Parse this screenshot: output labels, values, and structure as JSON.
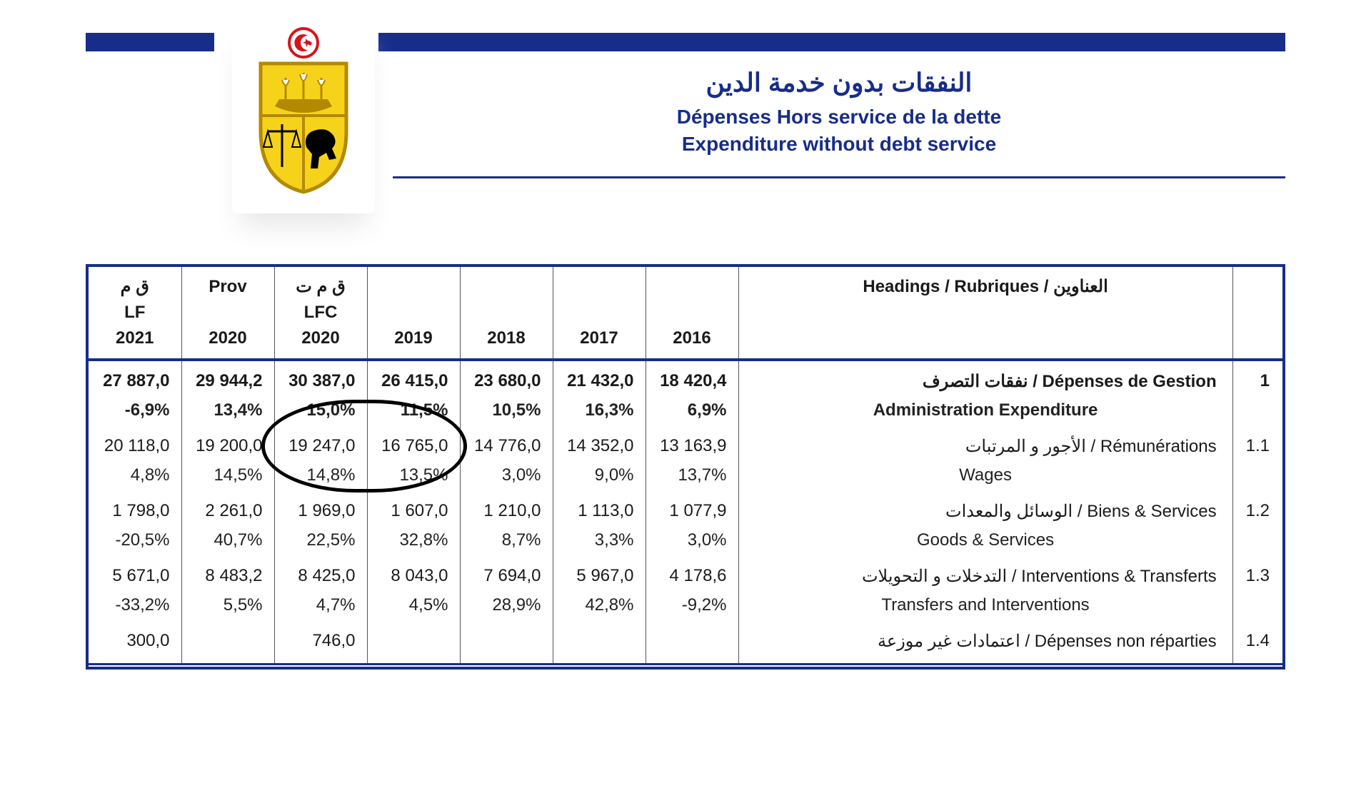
{
  "header": {
    "title_ar": "النفقات بدون خدمة الدين",
    "title_fr": "Dépenses Hors service de la dette",
    "title_en": "Expenditure without debt service",
    "emblem": {
      "shield_fill": "#f6d21a",
      "shield_stroke": "#b38900",
      "flag_red": "#d7141a"
    }
  },
  "colors": {
    "navy": "#172d8a",
    "text": "#1a1a1a",
    "background": "#ffffff"
  },
  "columns": [
    {
      "l1": "ق م",
      "l2": "LF",
      "l3": "2021"
    },
    {
      "l1": "Prov",
      "l2": "",
      "l3": "2020"
    },
    {
      "l1": "ق م ت",
      "l2": "LFC",
      "l3": "2020"
    },
    {
      "l1": "",
      "l2": "",
      "l3": "2019"
    },
    {
      "l1": "",
      "l2": "",
      "l3": "2018"
    },
    {
      "l1": "",
      "l2": "",
      "l3": "2017"
    },
    {
      "l1": "",
      "l2": "",
      "l3": "2016"
    }
  ],
  "headings_label": "Headings / Rubriques / العناوين",
  "rows": [
    {
      "idx": "1",
      "label_frar": "نفقات التصرف / Dépenses de Gestion",
      "label_en": "Administration Expenditure",
      "vals": [
        "27 887,0",
        "29 944,2",
        "30 387,0",
        "26 415,0",
        "23 680,0",
        "21 432,0",
        "18 420,4"
      ],
      "pcts": [
        "-6,9%",
        "13,4%",
        "15,0%",
        "11,5%",
        "10,5%",
        "16,3%",
        "6,9%"
      ],
      "bold": true
    },
    {
      "idx": "1.1",
      "label_frar": "الأجور و المرتبات / Rémunérations",
      "label_en": "Wages",
      "vals": [
        "20 118,0",
        "19 200,0",
        "19 247,0",
        "16 765,0",
        "14 776,0",
        "14 352,0",
        "13 163,9"
      ],
      "pcts": [
        "4,8%",
        "14,5%",
        "14,8%",
        "13,5%",
        "3,0%",
        "9,0%",
        "13,7%"
      ]
    },
    {
      "idx": "1.2",
      "label_frar": "الوسائل والمعدات /  Biens & Services",
      "label_en": "Goods & Services",
      "vals": [
        "1 798,0",
        "2 261,0",
        "1 969,0",
        "1 607,0",
        "1 210,0",
        "1 113,0",
        "1 077,9"
      ],
      "pcts": [
        "-20,5%",
        "40,7%",
        "22,5%",
        "32,8%",
        "8,7%",
        "3,3%",
        "3,0%"
      ]
    },
    {
      "idx": "1.3",
      "label_frar": "التدخلات و التحويلات / Interventions & Transferts",
      "label_en": "Transfers and Interventions",
      "vals": [
        "5 671,0",
        "8 483,2",
        "8 425,0",
        "8 043,0",
        "7 694,0",
        "5 967,0",
        "4 178,6"
      ],
      "pcts": [
        "-33,2%",
        "5,5%",
        "4,7%",
        "4,5%",
        "28,9%",
        "42,8%",
        "-9,2%"
      ]
    },
    {
      "idx": "1.4",
      "label_frar": "اعتمادات غير موزعة / Dépenses non réparties",
      "label_en": "",
      "vals": [
        "300,0",
        "",
        "746,0",
        "",
        "",
        "",
        ""
      ],
      "pcts": []
    }
  ],
  "annotation": {
    "note": "hand-drawn oval around LFC 2020 & 2019 of row 1.1 (values 19 247,0 / 16 765,0 and 14,8% / 13,5%)"
  }
}
